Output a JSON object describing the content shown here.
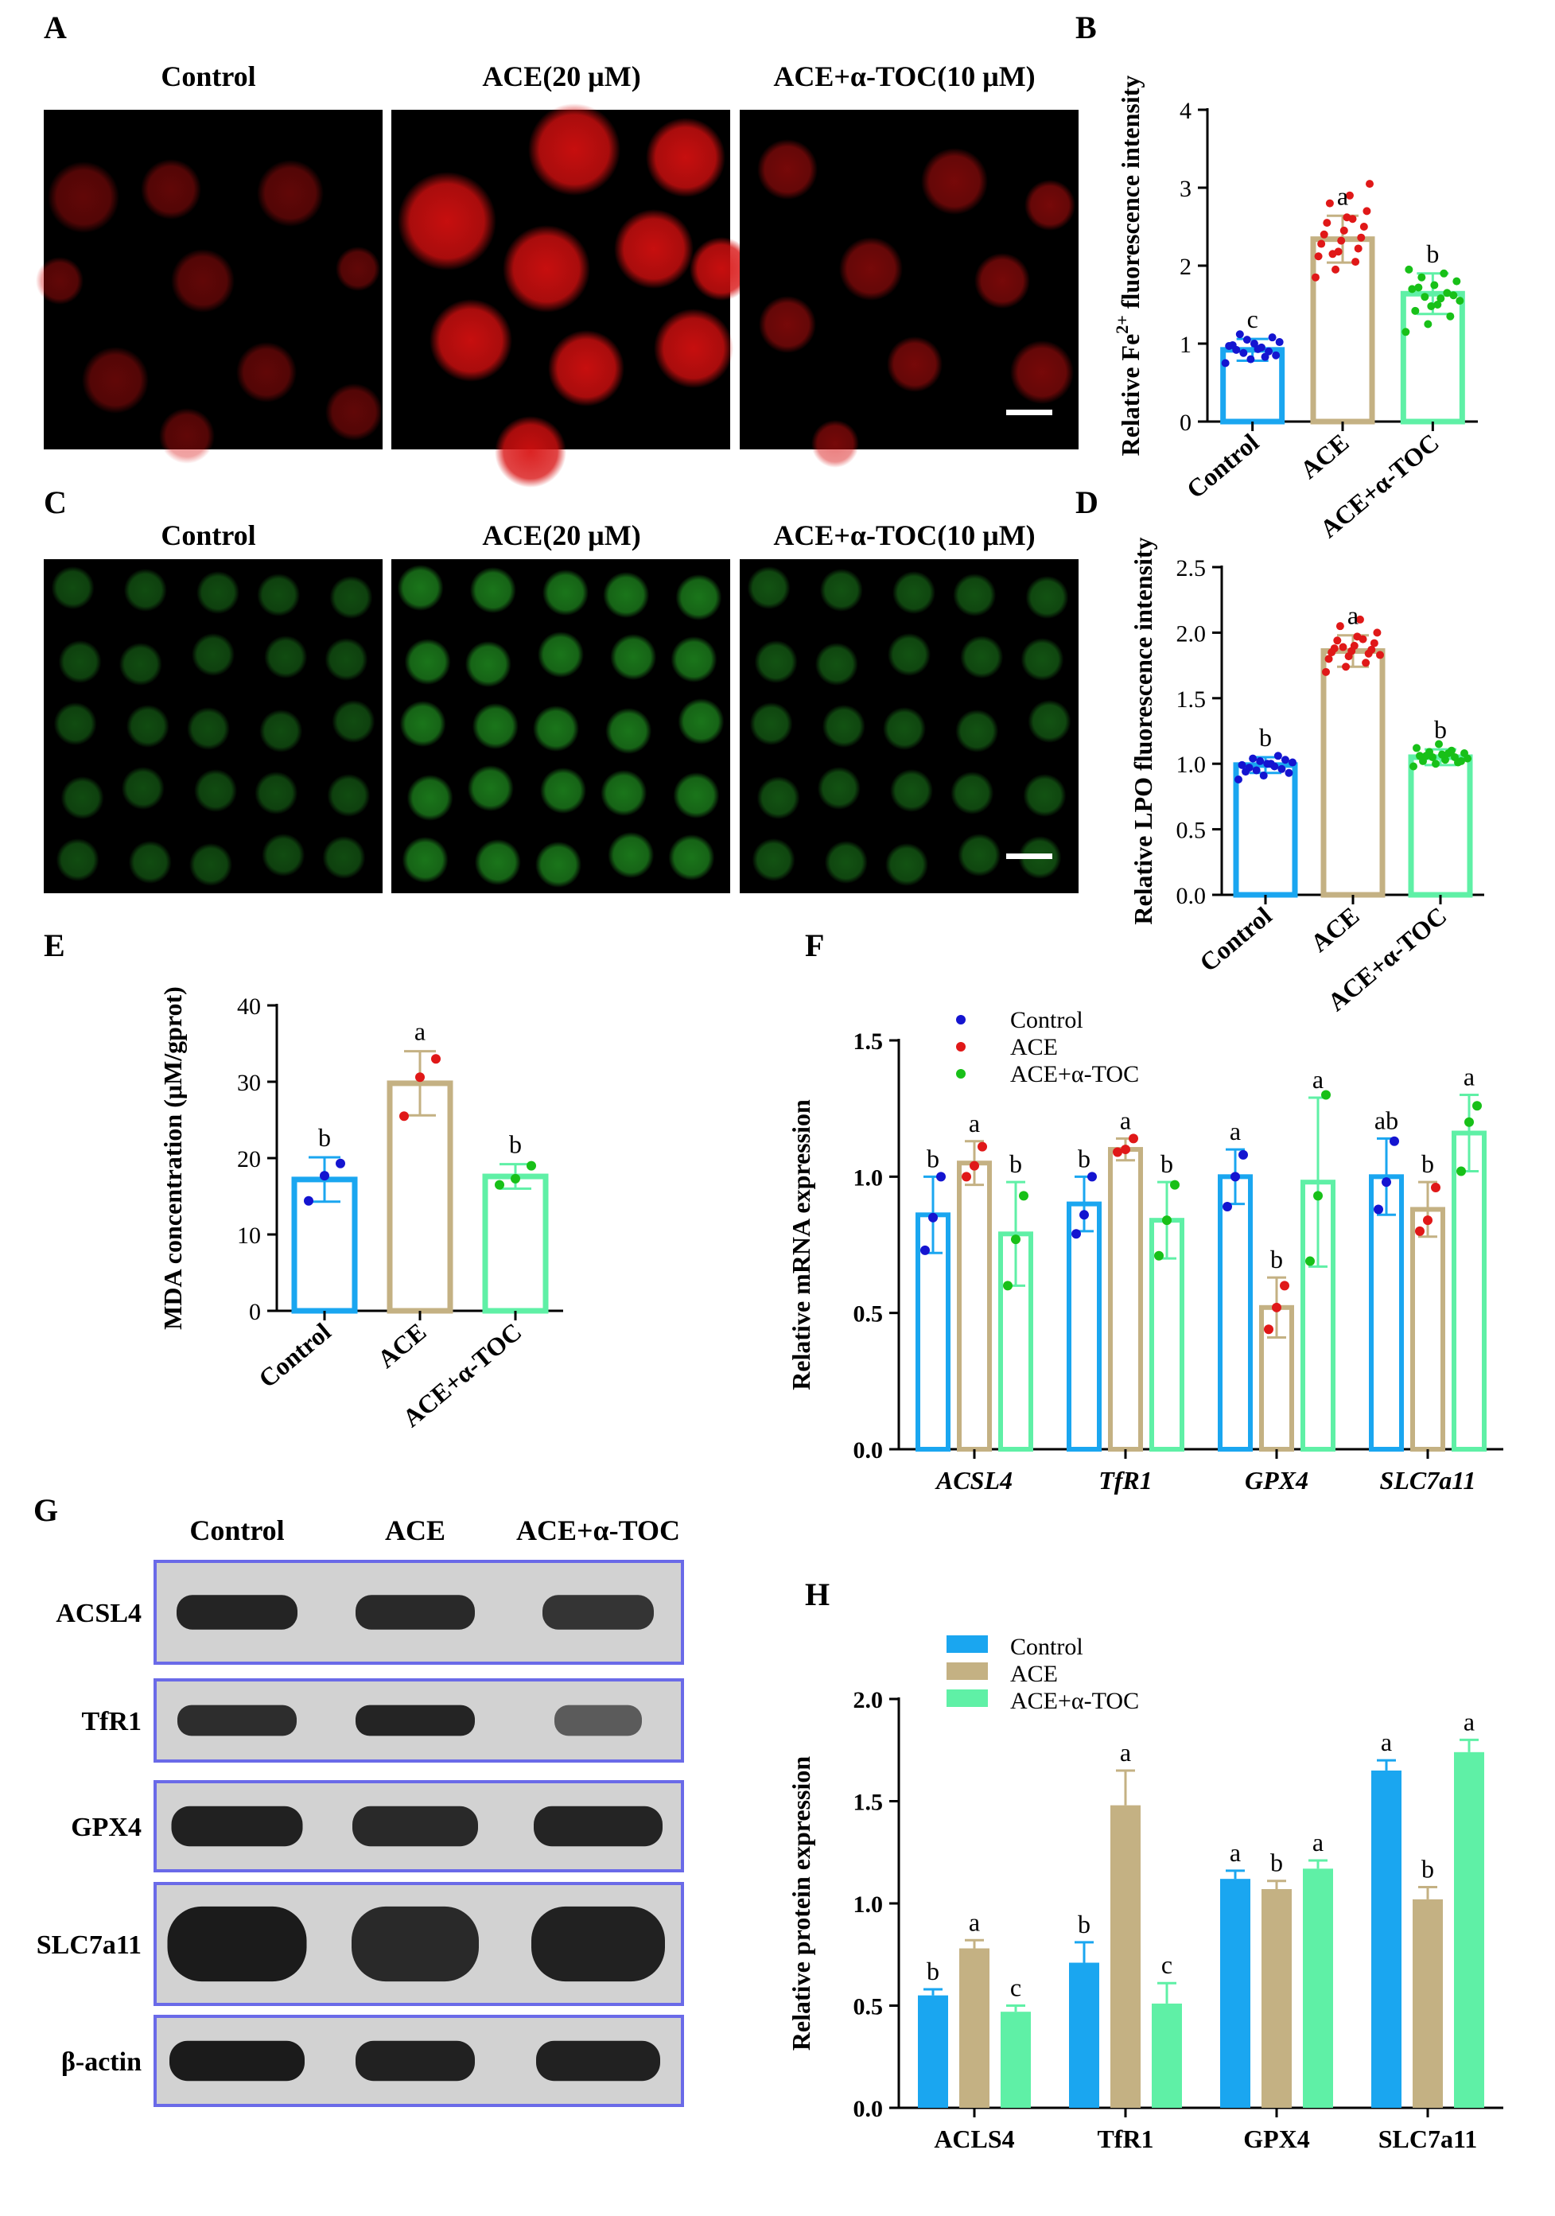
{
  "panels": {
    "A": {
      "letter": "A",
      "columns": [
        "Control",
        "ACE(20 μM)",
        "ACE+α-TOC(10 μM)"
      ],
      "stain_color": "#d81010",
      "background": "#000000"
    },
    "C": {
      "letter": "C",
      "columns": [
        "Control",
        "ACE(20 μM)",
        "ACE+α-TOC(10 μM)"
      ],
      "stain_color": "#1f8a1f",
      "background": "#000000"
    },
    "G": {
      "letter": "G",
      "columns": [
        "Control",
        "ACE",
        "ACE+α-TOC"
      ],
      "rows": [
        "ACSL4",
        "TfR1",
        "GPX4",
        "SLC7a11",
        "β-actin"
      ],
      "frame_color": "#6a6ae8"
    }
  },
  "colors": {
    "control": "#1aa6f0",
    "ace": "#c4b183",
    "ace_toc": "#5ff0a6",
    "dot_control": "#1414d0",
    "dot_ace": "#e01818",
    "dot_ace_toc": "#18c018"
  },
  "chart_data": [
    {
      "id": "B",
      "letter": "B",
      "type": "bar",
      "ylabel_main": "Relative Fe",
      "ylabel_sup": "2+",
      "ylabel_rest": " fluorescence intensity",
      "ylim": [
        0,
        4
      ],
      "yticks": [
        "0",
        "1",
        "2",
        "3",
        "4"
      ],
      "categories": [
        "Control",
        "ACE",
        "ACE+α-TOC"
      ],
      "values": [
        0.92,
        2.34,
        1.64
      ],
      "errors": [
        0.14,
        0.3,
        0.26
      ],
      "letters": [
        "c",
        "a",
        "b"
      ],
      "points": [
        [
          0.75,
          0.8,
          0.85,
          0.88,
          0.9,
          0.92,
          0.95,
          0.97,
          1.0,
          1.02,
          1.05,
          1.08,
          1.12,
          0.83,
          0.98,
          0.93
        ],
        [
          1.85,
          1.95,
          2.05,
          2.12,
          2.18,
          2.22,
          2.28,
          2.32,
          2.36,
          2.4,
          2.45,
          2.5,
          2.55,
          2.62,
          2.7,
          2.8,
          2.9,
          3.05,
          2.15,
          2.6
        ],
        [
          1.15,
          1.25,
          1.35,
          1.42,
          1.5,
          1.55,
          1.6,
          1.65,
          1.7,
          1.75,
          1.8,
          1.85,
          1.9,
          1.95,
          1.48,
          1.62,
          1.72,
          1.58
        ]
      ]
    },
    {
      "id": "D",
      "letter": "D",
      "type": "bar",
      "ylabel": "Relative LPO fluorescence intensity",
      "ylim": [
        0,
        2.5
      ],
      "yticks": [
        "0.0",
        "0.5",
        "1.0",
        "1.5",
        "2.0",
        "2.5"
      ],
      "categories": [
        "Control",
        "ACE",
        "ACE+α-TOC"
      ],
      "values": [
        0.99,
        1.86,
        1.05
      ],
      "errors": [
        0.06,
        0.12,
        0.06
      ],
      "letters": [
        "b",
        "a",
        "b"
      ],
      "points": [
        [
          0.88,
          0.91,
          0.93,
          0.95,
          0.96,
          0.97,
          0.98,
          0.99,
          1.0,
          1.01,
          1.02,
          1.03,
          1.04,
          1.06,
          0.94,
          1.0
        ],
        [
          1.7,
          1.74,
          1.77,
          1.8,
          1.82,
          1.84,
          1.85,
          1.86,
          1.87,
          1.88,
          1.9,
          1.92,
          1.94,
          1.97,
          2.0,
          2.05,
          2.1,
          1.83,
          1.89,
          1.95
        ],
        [
          0.98,
          1.0,
          1.01,
          1.02,
          1.03,
          1.04,
          1.05,
          1.05,
          1.06,
          1.07,
          1.08,
          1.09,
          1.1,
          1.12,
          1.15,
          1.02,
          1.06,
          1.08
        ]
      ]
    },
    {
      "id": "E",
      "letter": "E",
      "type": "bar",
      "ylabel": "MDA concentration (μM/gprot)",
      "ylim": [
        0,
        40
      ],
      "yticks": [
        "0",
        "10",
        "20",
        "30",
        "40"
      ],
      "categories": [
        "Control",
        "ACE",
        "ACE+α-TOC"
      ],
      "values": [
        17.2,
        29.8,
        17.6
      ],
      "errors": [
        2.9,
        4.2,
        1.6
      ],
      "letters": [
        "b",
        "a",
        "b"
      ],
      "points": [
        [
          14.4,
          17.7,
          19.3
        ],
        [
          25.5,
          30.6,
          33.0
        ],
        [
          16.5,
          17.3,
          19.0
        ]
      ]
    },
    {
      "id": "F",
      "letter": "F",
      "type": "bar",
      "ylabel": "Relative mRNA expression",
      "ylim": [
        0,
        1.5
      ],
      "yticks": [
        "0.0",
        "0.5",
        "1.0",
        "1.5"
      ],
      "categories": [
        "ACSL4",
        "TfR1",
        "GPX4",
        "SLC7a11"
      ],
      "legend": [
        "Control",
        "ACE",
        "ACE+α-TOC"
      ],
      "series": [
        {
          "name": "Control",
          "values": [
            0.86,
            0.9,
            1.0,
            1.0
          ],
          "errors": [
            0.14,
            0.1,
            0.1,
            0.14
          ]
        },
        {
          "name": "ACE",
          "values": [
            1.05,
            1.1,
            0.52,
            0.88
          ],
          "errors": [
            0.08,
            0.04,
            0.11,
            0.1
          ]
        },
        {
          "name": "ACE+α-TOC",
          "values": [
            0.79,
            0.84,
            0.98,
            1.16
          ],
          "errors": [
            0.19,
            0.14,
            0.31,
            0.14
          ]
        }
      ],
      "letters": [
        [
          "b",
          "a",
          "b"
        ],
        [
          "b",
          "a",
          "b"
        ],
        [
          "a",
          "b",
          "a"
        ],
        [
          "ab",
          "b",
          "a"
        ]
      ],
      "points": [
        [
          [
            0.73,
            0.85,
            1.0
          ],
          [
            0.79,
            0.86,
            1.0
          ],
          [
            0.89,
            1.0,
            1.08
          ],
          [
            0.88,
            0.98,
            1.13
          ]
        ],
        [
          [
            1.0,
            1.04,
            1.11
          ],
          [
            1.09,
            1.1,
            1.14
          ],
          [
            0.44,
            0.52,
            0.6
          ],
          [
            0.8,
            0.84,
            0.96
          ]
        ],
        [
          [
            0.6,
            0.77,
            0.93
          ],
          [
            0.71,
            0.84,
            0.97
          ],
          [
            0.69,
            0.93,
            1.3
          ],
          [
            1.02,
            1.2,
            1.26
          ]
        ]
      ]
    },
    {
      "id": "H",
      "letter": "H",
      "type": "bar",
      "ylabel": "Relative protein expression",
      "ylim": [
        0,
        2.0
      ],
      "yticks": [
        "0.0",
        "0.5",
        "1.0",
        "1.5",
        "2.0"
      ],
      "categories": [
        "ACLS4",
        "TfR1",
        "GPX4",
        "SLC7a11"
      ],
      "legend": [
        "Control",
        "ACE",
        "ACE+α-TOC"
      ],
      "series": [
        {
          "name": "Control",
          "values": [
            0.55,
            0.71,
            1.12,
            1.65
          ],
          "errors": [
            0.03,
            0.1,
            0.04,
            0.05
          ]
        },
        {
          "name": "ACE",
          "values": [
            0.78,
            1.48,
            1.07,
            1.02
          ],
          "errors": [
            0.04,
            0.17,
            0.04,
            0.06
          ]
        },
        {
          "name": "ACE+α-TOC",
          "values": [
            0.47,
            0.51,
            1.17,
            1.74
          ],
          "errors": [
            0.03,
            0.1,
            0.04,
            0.06
          ]
        }
      ],
      "letters": [
        [
          "b",
          "a",
          "c"
        ],
        [
          "b",
          "a",
          "c"
        ],
        [
          "a",
          "b",
          "a"
        ],
        [
          "a",
          "b",
          "a"
        ]
      ]
    }
  ]
}
